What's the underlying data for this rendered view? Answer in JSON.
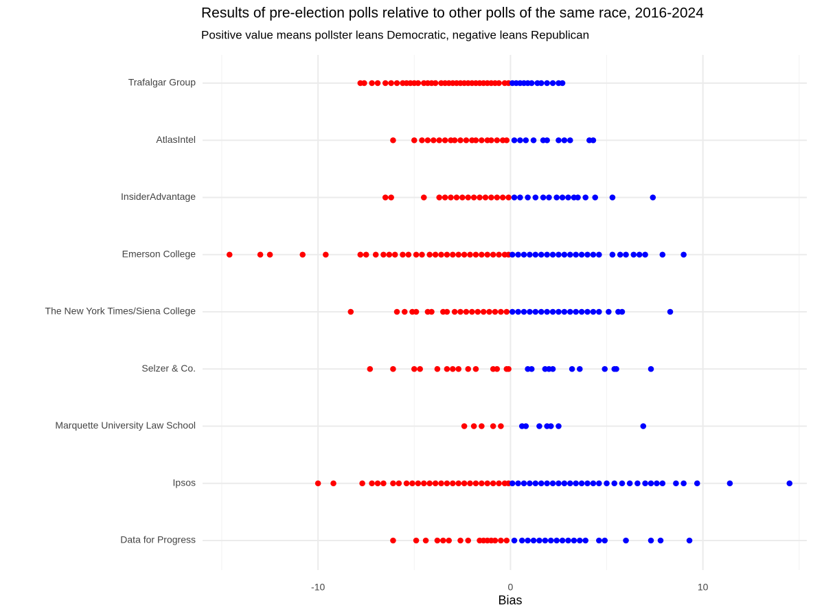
{
  "chart_data": {
    "type": "strip",
    "title": "Results of pre-election polls relative to other polls of the same race, 2016-2024",
    "subtitle": "Positive value means pollster leans Democratic, negative leans Republican",
    "xlabel": "Bias",
    "categories": [
      "Trafalgar Group",
      "AtlasIntel",
      "InsiderAdvantage",
      "Emerson College",
      "The New York Times/Siena College",
      "Selzer & Co.",
      "Marquette University Law School",
      "Ipsos",
      "Data for Progress"
    ],
    "values": [
      [
        -7.8,
        -7.6,
        -7.2,
        -6.9,
        -6.5,
        -6.2,
        -5.9,
        -5.6,
        -5.4,
        -5.2,
        -5.0,
        -4.8,
        -4.5,
        -4.3,
        -4.1,
        -3.9,
        -3.6,
        -3.4,
        -3.2,
        -3.0,
        -2.8,
        -2.6,
        -2.4,
        -2.2,
        -2.0,
        -1.8,
        -1.6,
        -1.4,
        -1.2,
        -1.0,
        -0.8,
        -0.6,
        -0.3,
        -0.1,
        0.1,
        0.3,
        0.5,
        0.7,
        0.9,
        1.1,
        1.4,
        1.6,
        1.9,
        2.2,
        2.5,
        2.7
      ],
      [
        -6.1,
        -5.0,
        -4.6,
        -4.3,
        -4.0,
        -3.7,
        -3.4,
        -3.1,
        -2.9,
        -2.6,
        -2.3,
        -2.0,
        -1.8,
        -1.5,
        -1.2,
        -1.0,
        -0.7,
        -0.4,
        -0.2,
        0.2,
        0.5,
        0.8,
        1.2,
        1.7,
        1.9,
        2.5,
        2.8,
        3.1,
        4.1,
        4.3
      ],
      [
        -6.5,
        -6.2,
        -4.5,
        -3.7,
        -3.4,
        -3.1,
        -2.8,
        -2.5,
        -2.2,
        -1.9,
        -1.6,
        -1.3,
        -1.0,
        -0.7,
        -0.4,
        -0.1,
        0.2,
        0.5,
        0.9,
        1.3,
        1.7,
        2.0,
        2.4,
        2.7,
        3.0,
        3.3,
        3.5,
        3.9,
        4.4,
        5.3,
        7.4
      ],
      [
        -14.6,
        -13.0,
        -12.5,
        -10.8,
        -9.6,
        -7.8,
        -7.5,
        -7.0,
        -6.6,
        -6.3,
        -6.0,
        -5.6,
        -5.3,
        -4.9,
        -4.6,
        -4.2,
        -3.9,
        -3.6,
        -3.3,
        -3.0,
        -2.7,
        -2.4,
        -2.1,
        -1.8,
        -1.5,
        -1.2,
        -0.9,
        -0.6,
        -0.3,
        -0.1,
        0.1,
        0.4,
        0.7,
        1.0,
        1.3,
        1.6,
        1.9,
        2.2,
        2.5,
        2.8,
        3.1,
        3.4,
        3.7,
        4.0,
        4.3,
        4.6,
        5.3,
        5.7,
        6.0,
        6.4,
        6.7,
        7.0,
        7.9,
        9.0
      ],
      [
        -8.3,
        -5.9,
        -5.5,
        -5.1,
        -4.9,
        -4.3,
        -4.1,
        -3.5,
        -3.3,
        -2.9,
        -2.6,
        -2.3,
        -2.0,
        -1.7,
        -1.4,
        -1.1,
        -0.8,
        -0.5,
        -0.2,
        0.1,
        0.4,
        0.7,
        1.0,
        1.3,
        1.6,
        1.9,
        2.2,
        2.5,
        2.8,
        3.1,
        3.4,
        3.7,
        4.0,
        4.3,
        4.6,
        5.1,
        5.6,
        5.8,
        8.3
      ],
      [
        -7.3,
        -6.1,
        -5.0,
        -4.7,
        -3.8,
        -3.3,
        -3.0,
        -2.7,
        -2.2,
        -1.8,
        -0.9,
        -0.7,
        -0.2,
        -0.1,
        0.9,
        1.1,
        1.8,
        2.0,
        2.2,
        3.2,
        3.6,
        4.9,
        5.4,
        5.5,
        7.3
      ],
      [
        -2.4,
        -1.9,
        -1.5,
        -0.9,
        -0.5,
        0.6,
        0.8,
        1.5,
        1.9,
        2.1,
        2.5,
        6.9
      ],
      [
        -10.0,
        -9.2,
        -7.7,
        -7.2,
        -6.9,
        -6.6,
        -6.1,
        -5.8,
        -5.4,
        -5.1,
        -4.8,
        -4.5,
        -4.2,
        -3.9,
        -3.6,
        -3.3,
        -3.0,
        -2.7,
        -2.4,
        -2.1,
        -1.8,
        -1.5,
        -1.2,
        -0.9,
        -0.6,
        -0.3,
        -0.1,
        0.1,
        0.4,
        0.7,
        1.0,
        1.3,
        1.6,
        1.9,
        2.2,
        2.5,
        2.8,
        3.1,
        3.4,
        3.7,
        4.0,
        4.3,
        4.6,
        5.0,
        5.4,
        5.8,
        6.2,
        6.6,
        7.0,
        7.3,
        7.6,
        7.9,
        8.6,
        9.0,
        9.7,
        11.4,
        14.5
      ],
      [
        -6.1,
        -4.9,
        -4.4,
        -3.8,
        -3.5,
        -3.2,
        -2.6,
        -2.2,
        -1.6,
        -1.4,
        -1.2,
        -1.0,
        -0.8,
        -0.5,
        -0.2,
        0.2,
        0.6,
        0.9,
        1.2,
        1.5,
        1.8,
        2.1,
        2.4,
        2.7,
        3.0,
        3.3,
        3.6,
        3.9,
        4.6,
        4.9,
        6.0,
        7.3,
        7.8,
        9.3
      ]
    ],
    "negative_color": "#ff0000",
    "positive_color": "#0000ff",
    "xlim": [
      -16,
      15.4
    ],
    "xticks": [
      -10,
      0,
      10
    ],
    "xminorticks": [
      -15,
      -5,
      5,
      15
    ],
    "grid": true
  }
}
